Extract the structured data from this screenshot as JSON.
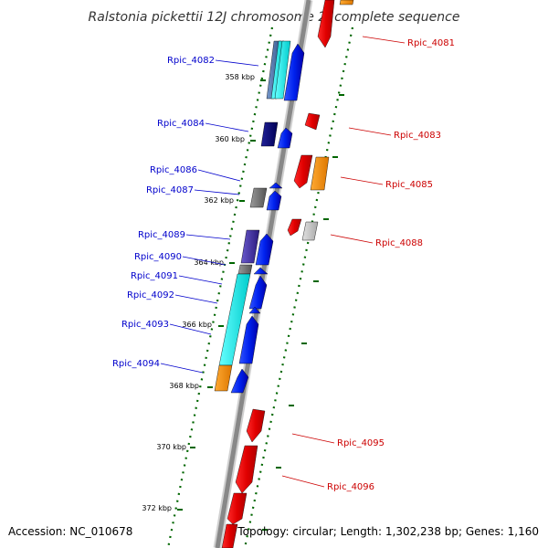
{
  "title": "Ralstonia pickettii 12J chromosome 2, complete sequence",
  "footer": {
    "accession": "Accession: NC_010678",
    "topology": "Topology: circular; Length: 1,302,238 bp; Genes: 1,160"
  },
  "ticks": [
    "358 kbp",
    "360 kbp",
    "362 kbp",
    "364 kbp",
    "366 kbp",
    "368 kbp",
    "370 kbp",
    "372 kbp"
  ],
  "genes_left": [
    "Rpic_4082",
    "Rpic_4084",
    "Rpic_4086",
    "Rpic_4087",
    "Rpic_4089",
    "Rpic_4090",
    "Rpic_4091",
    "Rpic_4092",
    "Rpic_4093",
    "Rpic_4094"
  ],
  "genes_right": [
    "Rpic_4081",
    "Rpic_4083",
    "Rpic_4085",
    "Rpic_4088",
    "Rpic_4095",
    "Rpic_4096"
  ],
  "colors": {
    "forward_cds": "#0000ee",
    "reverse_cds": "#ee0000",
    "left_label": "#0000cc",
    "right_label": "#cc0000",
    "tick_marks": "#006600",
    "backbone": "#888888"
  }
}
